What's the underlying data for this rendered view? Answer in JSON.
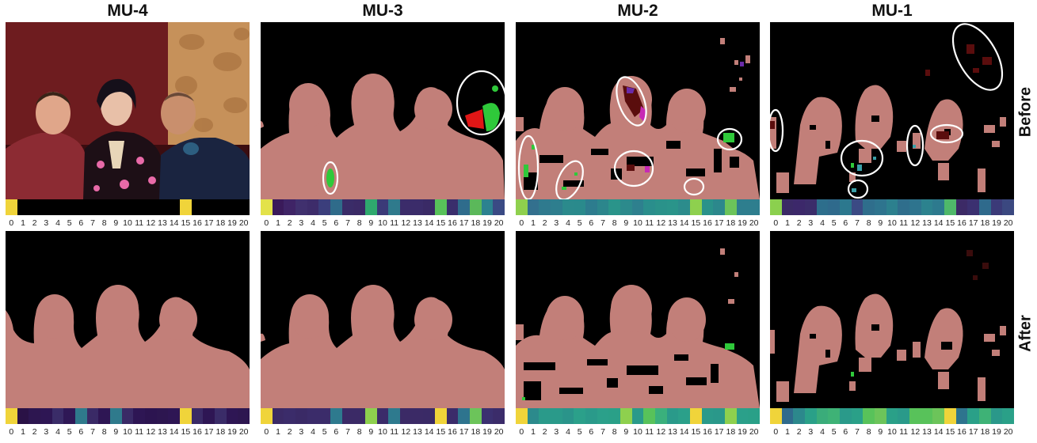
{
  "columns": [
    {
      "title": "MU-4"
    },
    {
      "title": "MU-3"
    },
    {
      "title": "MU-2"
    },
    {
      "title": "MU-1"
    }
  ],
  "rows": [
    {
      "label": "Before"
    },
    {
      "label": "After"
    }
  ],
  "class_ticks": [
    "0",
    "1",
    "2",
    "3",
    "4",
    "5",
    "6",
    "7",
    "8",
    "9",
    "10",
    "11",
    "12",
    "13",
    "14",
    "15",
    "16",
    "17",
    "18",
    "19",
    "20"
  ],
  "colors": {
    "person_mask": "#c27f79",
    "background": "#000000",
    "highlight_circle": "#ffffff",
    "mis_green": "#2fc93a",
    "mis_red": "#e01616",
    "mis_magenta": "#c72ab5",
    "mis_darkred": "#5a0d0d"
  },
  "strips": {
    "before": [
      [
        "#f0d43a",
        "#000000",
        "#000000",
        "#000000",
        "#000000",
        "#000000",
        "#000000",
        "#000000",
        "#000000",
        "#000000",
        "#000000",
        "#000000",
        "#000000",
        "#000000",
        "#000000",
        "#f0d43a",
        "#000000",
        "#000000",
        "#000000",
        "#000000",
        "#000000"
      ],
      [
        "#e3e24a",
        "#3a1a5a",
        "#3f2466",
        "#40306e",
        "#3d2c6a",
        "#3b3e7c",
        "#2f6b8a",
        "#3a2c68",
        "#3b2a66",
        "#2fa96e",
        "#3b3a78",
        "#2f7a8c",
        "#3b2c6a",
        "#3b2c6a",
        "#3a2a66",
        "#58c25a",
        "#3a2e6c",
        "#2f6c8c",
        "#5bb85a",
        "#2c8290",
        "#3a4a84"
      ],
      [
        "#8fd04e",
        "#33708e",
        "#2f7a8e",
        "#2e7e8e",
        "#2b8a8c",
        "#2a8a8c",
        "#2d7c8e",
        "#2c868c",
        "#2a948a",
        "#2c8a8c",
        "#2e808e",
        "#2a8e8c",
        "#2a928a",
        "#2a948a",
        "#2c8c8c",
        "#8ed04e",
        "#2a928a",
        "#2c888c",
        "#6cc45a",
        "#2e7e8e",
        "#2e7e8e"
      ],
      [
        "#8bd04e",
        "#3b2a66",
        "#3c286a",
        "#3b2c6a",
        "#2d6e8c",
        "#2f6a8c",
        "#2c788e",
        "#3b4a84",
        "#2f6e8c",
        "#2e748e",
        "#2c808e",
        "#2f6e8c",
        "#2e748e",
        "#2c828e",
        "#2d7a8e",
        "#4fb86a",
        "#3c2a66",
        "#3b3070",
        "#2f6a8c",
        "#3b3a78",
        "#3b4880"
      ]
    ],
    "after": [
      [
        "#f0d43a",
        "#2a1246",
        "#2d1650",
        "#2e1654",
        "#3a2c68",
        "#2f1856",
        "#2f7a8c",
        "#3a2a66",
        "#2e1654",
        "#2f7a8c",
        "#3a2a66",
        "#2e1654",
        "#2c1450",
        "#2d1650",
        "#2e1654",
        "#f0d43a",
        "#3a2a66",
        "#2e1654",
        "#3a2c68",
        "#2e1654",
        "#2d1650"
      ],
      [
        "#f0d43a",
        "#3b2a66",
        "#3b2c6a",
        "#3a2a66",
        "#3b2c6a",
        "#3b2c6a",
        "#2e7a8e",
        "#3b2a66",
        "#3b2a66",
        "#8ed04e",
        "#3b2c6a",
        "#2e7a8e",
        "#3b2a66",
        "#3b2a66",
        "#3a2a66",
        "#f0d43a",
        "#3b2c6a",
        "#2e748e",
        "#6cc45a",
        "#3b3070",
        "#3b2c6a"
      ],
      [
        "#f0d43a",
        "#2c8a8c",
        "#2a9a8a",
        "#2a9a8a",
        "#2a948a",
        "#2ba08a",
        "#2a9a8a",
        "#2ba08a",
        "#2aa088",
        "#8ed04e",
        "#2a9a8a",
        "#58c25a",
        "#3ab07c",
        "#2a9a8a",
        "#2ba08a",
        "#f0d43a",
        "#2a9a8a",
        "#2a988a",
        "#8ed04e",
        "#2ba08a",
        "#2aa088"
      ],
      [
        "#f0d43a",
        "#2f6a8c",
        "#2c888c",
        "#2aa088",
        "#3aac7a",
        "#3eb276",
        "#2a9a8a",
        "#2aa088",
        "#58c25a",
        "#6cc45a",
        "#2aa088",
        "#2a9a8a",
        "#58c25a",
        "#58c25a",
        "#6cc45a",
        "#f0d43a",
        "#2e748e",
        "#2aa088",
        "#3eb276",
        "#2a988a",
        "#2aa088"
      ]
    ]
  }
}
